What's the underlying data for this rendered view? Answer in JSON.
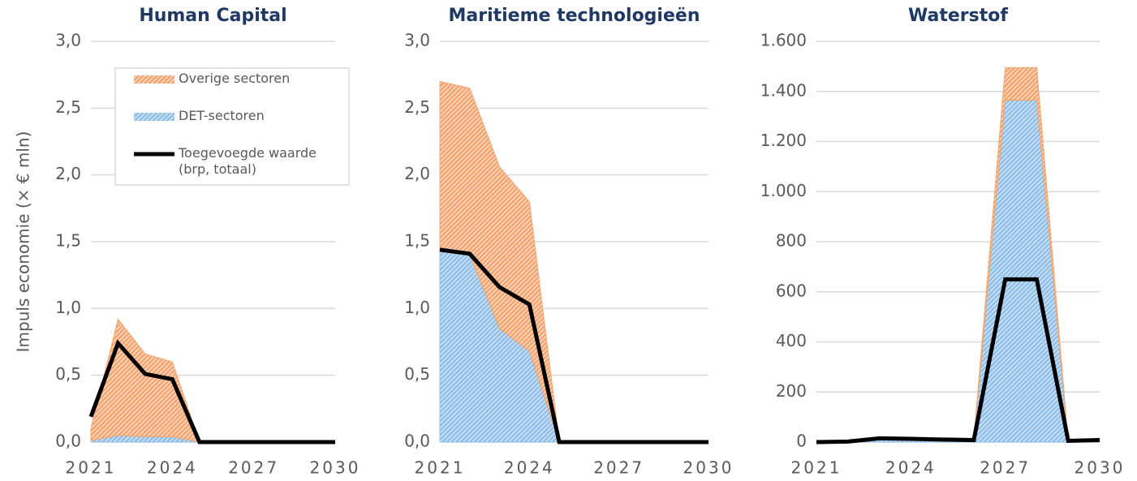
{
  "chart_data": [
    {
      "type": "area",
      "title": "Human Capital",
      "y_label": "Impuls economie (× € mln)",
      "stacked": true,
      "legend": "upper right",
      "x": [
        2021,
        2022,
        2023,
        2024,
        2025,
        2026,
        2027,
        2028,
        2029,
        2030
      ],
      "xlim": [
        2021,
        2030
      ],
      "xticks": [
        2021,
        2024,
        2027,
        2030
      ],
      "ylim": [
        0,
        3
      ],
      "yticks": [
        {
          "value": 0,
          "label": "0,0"
        },
        {
          "value": 0.5,
          "label": "0,5"
        },
        {
          "value": 1,
          "label": "1,0"
        },
        {
          "value": 1.5,
          "label": "1,5"
        },
        {
          "value": 2,
          "label": "2,0"
        },
        {
          "value": 2.5,
          "label": "2,5"
        },
        {
          "value": 3,
          "label": "3,0"
        }
      ],
      "grid": true,
      "series": [
        {
          "name": "Overige sectoren",
          "type": "area",
          "color": "#f4a46f",
          "values": [
            0.09,
            0.87,
            0.62,
            0.56,
            0,
            0,
            0,
            0,
            0,
            0
          ]
        },
        {
          "name": "DET-sectoren",
          "type": "area",
          "color": "#8fbfe8",
          "values": [
            0.01,
            0.05,
            0.04,
            0.04,
            0,
            0,
            0,
            0,
            0,
            0
          ]
        },
        {
          "name": "Toegevoegde waarde (brp, totaal)",
          "type": "line",
          "color": "#000000",
          "values": [
            0.19,
            0.74,
            0.51,
            0.47,
            0,
            0,
            0,
            0,
            0,
            0
          ]
        }
      ]
    },
    {
      "type": "area",
      "title": "Maritieme technologieën",
      "stacked": true,
      "x": [
        2021,
        2022,
        2023,
        2024,
        2025,
        2026,
        2027,
        2028,
        2029,
        2030
      ],
      "xlim": [
        2021,
        2030
      ],
      "xticks": [
        2021,
        2024,
        2027,
        2030
      ],
      "ylim": [
        0,
        3
      ],
      "yticks": [
        {
          "value": 0,
          "label": "0,0"
        },
        {
          "value": 0.5,
          "label": "0,5"
        },
        {
          "value": 1,
          "label": "1,0"
        },
        {
          "value": 1.5,
          "label": "1,5"
        },
        {
          "value": 2,
          "label": "2,0"
        },
        {
          "value": 2.5,
          "label": "2,5"
        },
        {
          "value": 3,
          "label": "3,0"
        }
      ],
      "grid": true,
      "series": [
        {
          "name": "Overige sectoren",
          "type": "area",
          "color": "#f4a46f",
          "values": [
            1.25,
            1.25,
            1.21,
            1.12,
            0,
            0,
            0,
            0,
            0,
            0
          ]
        },
        {
          "name": "DET-sectoren",
          "type": "area",
          "color": "#8fbfe8",
          "values": [
            1.45,
            1.4,
            0.85,
            0.68,
            0,
            0,
            0,
            0,
            0,
            0
          ]
        },
        {
          "name": "Toegevoegde waarde (brp, totaal)",
          "type": "line",
          "color": "#000000",
          "values": [
            1.44,
            1.41,
            1.16,
            1.03,
            0,
            0,
            0,
            0,
            0,
            0
          ]
        }
      ]
    },
    {
      "type": "area",
      "title": "Waterstof",
      "stacked": true,
      "x": [
        2021,
        2022,
        2023,
        2024,
        2025,
        2026,
        2027,
        2028,
        2029,
        2030
      ],
      "xlim": [
        2021,
        2030
      ],
      "xticks": [
        2021,
        2024,
        2027,
        2030
      ],
      "ylim": [
        0,
        1600
      ],
      "yticks": [
        0,
        200,
        400,
        600,
        800,
        {
          "value": 1000,
          "label": "1.000"
        },
        {
          "value": 1200,
          "label": "1.200"
        },
        {
          "value": 1400,
          "label": "1.400"
        },
        {
          "value": 1600,
          "label": "1.600"
        }
      ],
      "grid": true,
      "series": [
        {
          "name": "Overige sectoren",
          "type": "area",
          "color": "#f4a46f",
          "values": [
            0,
            0,
            5,
            5,
            7,
            5,
            130,
            130,
            0,
            0
          ]
        },
        {
          "name": "DET-sectoren",
          "type": "area",
          "color": "#8fbfe8",
          "values": [
            0,
            0,
            10,
            10,
            8,
            5,
            1365,
            1365,
            0,
            0
          ]
        },
        {
          "name": "Toegevoegde waarde (brp, totaal)",
          "type": "line",
          "color": "#000000",
          "values": [
            0,
            2,
            15,
            13,
            10,
            8,
            650,
            650,
            5,
            8
          ]
        }
      ]
    }
  ]
}
